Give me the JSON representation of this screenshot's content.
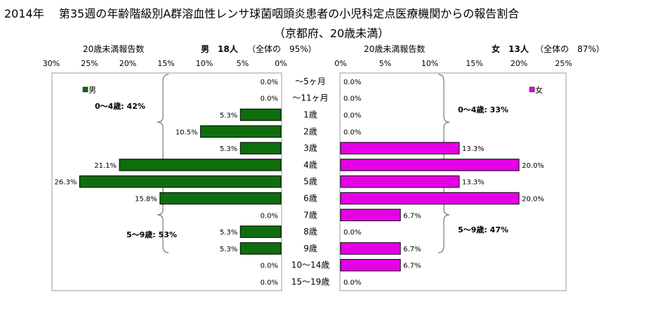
{
  "title": {
    "year": "2014年",
    "main": "第35週の年齢階級別A群溶血性レンサ球菌咽頭炎患者の小児科定点医療機関からの報告割合",
    "sub": "（京都府、20歳未満）"
  },
  "headers": {
    "male_axis": "20歳未満報告数",
    "male_label": "男　18人",
    "male_share": "（全体の　95%）",
    "female_axis": "20歳未満報告数",
    "female_label": "女　13人",
    "female_share": "（全体の　87%）"
  },
  "chart_data": {
    "type": "bar",
    "orientation": "horizontal-butterfly",
    "categories": [
      "～5ヶ月",
      "～11ヶ月",
      "1歳",
      "2歳",
      "3歳",
      "4歳",
      "5歳",
      "6歳",
      "7歳",
      "8歳",
      "9歳",
      "10～14歳",
      "15～19歳"
    ],
    "male": {
      "legend": "男",
      "color": "#0E6E0E",
      "values": [
        0.0,
        0.0,
        5.3,
        10.5,
        5.3,
        21.1,
        26.3,
        15.8,
        0.0,
        5.3,
        5.3,
        0.0,
        0.0
      ],
      "labels": [
        "0.0%",
        "0.0%",
        "5.3%",
        "10.5%",
        "5.3%",
        "21.1%",
        "26.3%",
        "15.8%",
        "0.0%",
        "5.3%",
        "5.3%",
        "0.0%",
        "0.0%"
      ],
      "xlim": [
        0,
        30
      ],
      "ticks": [
        "30%",
        "25%",
        "20%",
        "15%",
        "10%",
        "5%",
        "0%"
      ],
      "annotations": [
        "0～4歳: 42%",
        "5～9歳: 53%"
      ]
    },
    "female": {
      "legend": "女",
      "color": "#E600E6",
      "values": [
        0.0,
        0.0,
        0.0,
        0.0,
        13.3,
        20.0,
        13.3,
        20.0,
        6.7,
        0.0,
        6.7,
        6.7,
        0.0
      ],
      "labels": [
        "0.0%",
        "0.0%",
        "0.0%",
        "0.0%",
        "13.3%",
        "20.0%",
        "13.3%",
        "20.0%",
        "6.7%",
        "0.0%",
        "6.7%",
        "6.7%",
        "0.0%"
      ],
      "xlim": [
        0,
        25
      ],
      "ticks": [
        "0%",
        "5%",
        "10%",
        "15%",
        "20%",
        "25%"
      ],
      "annotations": [
        "0～4歳: 33%",
        "5～9歳: 47%"
      ]
    }
  }
}
